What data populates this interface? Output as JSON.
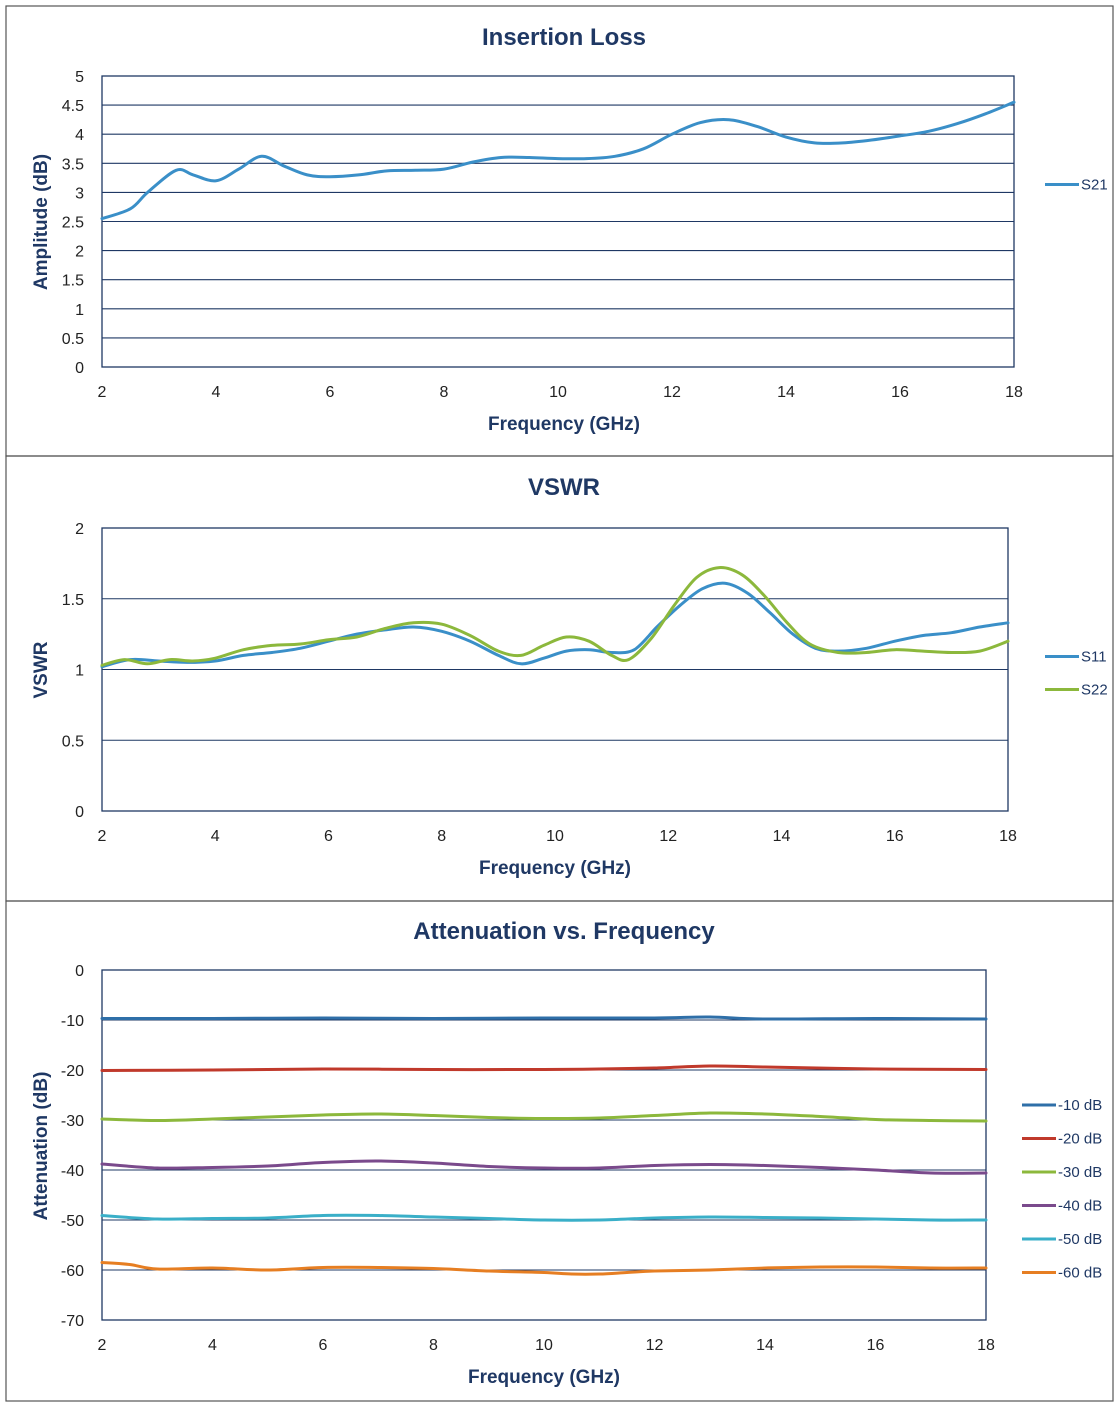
{
  "chart_data": [
    {
      "type": "line",
      "title": "Insertion Loss",
      "xlabel": "Frequency (GHz)",
      "ylabel": "Amplitude (dB)",
      "xlim": [
        2,
        18
      ],
      "ylim": [
        0,
        5
      ],
      "xticks": [
        2,
        4,
        6,
        8,
        10,
        12,
        14,
        16,
        18
      ],
      "yticks": [
        0,
        0.5,
        1,
        1.5,
        2,
        2.5,
        3,
        3.5,
        4,
        4.5,
        5
      ],
      "ytick_labels": [
        "0",
        "0.5",
        "1",
        "1.5",
        "2",
        "2.5",
        "3",
        "3.5",
        "4",
        "4.5",
        "5"
      ],
      "grid": "horizontal",
      "legend": "right",
      "series": [
        {
          "name": "S21",
          "color": "#3a8fc8",
          "x": [
            2,
            2.5,
            2.8,
            3.3,
            3.6,
            4.0,
            4.4,
            4.8,
            5.2,
            5.6,
            6.0,
            6.5,
            7.0,
            7.5,
            8.0,
            8.5,
            9.0,
            9.5,
            10.0,
            10.5,
            11.0,
            11.5,
            12.0,
            12.5,
            13.0,
            13.5,
            14.0,
            14.5,
            15.0,
            15.5,
            16.0,
            16.5,
            17.0,
            17.5,
            18.0
          ],
          "y": [
            2.55,
            2.72,
            3.0,
            3.38,
            3.3,
            3.2,
            3.4,
            3.62,
            3.45,
            3.3,
            3.27,
            3.3,
            3.37,
            3.38,
            3.4,
            3.52,
            3.6,
            3.6,
            3.58,
            3.58,
            3.62,
            3.75,
            4.0,
            4.2,
            4.25,
            4.13,
            3.95,
            3.85,
            3.85,
            3.9,
            3.97,
            4.05,
            4.18,
            4.35,
            4.55
          ]
        }
      ]
    },
    {
      "type": "line",
      "title": "VSWR",
      "xlabel": "Frequency (GHz)",
      "ylabel": "VSWR",
      "xlim": [
        2,
        18
      ],
      "ylim": [
        0,
        2
      ],
      "xticks": [
        2,
        4,
        6,
        8,
        10,
        12,
        14,
        16,
        18
      ],
      "yticks": [
        0,
        0.5,
        1,
        1.5,
        2
      ],
      "ytick_labels": [
        "0",
        "0.5",
        "1",
        "1.5",
        "2"
      ],
      "grid": "horizontal",
      "legend": "right",
      "series": [
        {
          "name": "S11",
          "color": "#3a8fc8",
          "x": [
            2,
            2.5,
            3.0,
            3.5,
            4.0,
            4.5,
            5.0,
            5.5,
            6.0,
            6.5,
            7.0,
            7.5,
            8.0,
            8.5,
            9.0,
            9.4,
            9.8,
            10.2,
            10.6,
            11.0,
            11.4,
            11.8,
            12.2,
            12.6,
            13.0,
            13.4,
            13.8,
            14.2,
            14.6,
            15.0,
            15.5,
            16.0,
            16.5,
            17.0,
            17.5,
            18.0
          ],
          "y": [
            1.02,
            1.07,
            1.06,
            1.05,
            1.06,
            1.1,
            1.12,
            1.15,
            1.2,
            1.25,
            1.28,
            1.3,
            1.27,
            1.2,
            1.1,
            1.04,
            1.08,
            1.13,
            1.14,
            1.12,
            1.14,
            1.3,
            1.45,
            1.57,
            1.61,
            1.54,
            1.4,
            1.25,
            1.15,
            1.13,
            1.15,
            1.2,
            1.24,
            1.26,
            1.3,
            1.33
          ]
        },
        {
          "name": "S22",
          "color": "#8cb83c",
          "x": [
            2,
            2.4,
            2.8,
            3.2,
            3.6,
            4.0,
            4.5,
            5.0,
            5.5,
            6.0,
            6.5,
            7.0,
            7.5,
            8.0,
            8.5,
            9.0,
            9.4,
            9.8,
            10.2,
            10.6,
            11.0,
            11.3,
            11.7,
            12.1,
            12.5,
            12.9,
            13.3,
            13.7,
            14.1,
            14.5,
            15.0,
            15.5,
            16.0,
            16.5,
            17.0,
            17.5,
            18.0
          ],
          "y": [
            1.03,
            1.07,
            1.04,
            1.07,
            1.06,
            1.08,
            1.14,
            1.17,
            1.18,
            1.21,
            1.23,
            1.29,
            1.33,
            1.32,
            1.24,
            1.13,
            1.1,
            1.17,
            1.23,
            1.2,
            1.1,
            1.07,
            1.22,
            1.45,
            1.65,
            1.72,
            1.67,
            1.52,
            1.33,
            1.18,
            1.12,
            1.12,
            1.14,
            1.13,
            1.12,
            1.13,
            1.2
          ]
        }
      ]
    },
    {
      "type": "line",
      "title": "Attenuation vs. Frequency",
      "xlabel": "Frequency (GHz)",
      "ylabel": "Attenuation (dB)",
      "xlim": [
        2,
        18
      ],
      "ylim": [
        -70,
        0
      ],
      "xticks": [
        2,
        4,
        6,
        8,
        10,
        12,
        14,
        16,
        18
      ],
      "yticks": [
        -70,
        -60,
        -50,
        -40,
        -30,
        -20,
        -10,
        0
      ],
      "ytick_labels": [
        "-70",
        "-60",
        "-50",
        "-40",
        "-30",
        "-20",
        "-10",
        "0"
      ],
      "grid": "horizontal",
      "legend": "right",
      "series": [
        {
          "name": "-10 dB",
          "color": "#2f6fa8",
          "x": [
            2,
            4,
            6,
            8,
            10,
            12,
            13,
            14,
            16,
            18
          ],
          "y": [
            -9.7,
            -9.7,
            -9.6,
            -9.7,
            -9.6,
            -9.6,
            -9.4,
            -9.8,
            -9.7,
            -9.8
          ]
        },
        {
          "name": "-20 dB",
          "color": "#c0392b",
          "x": [
            2,
            4,
            6,
            8,
            10,
            11,
            12,
            13,
            14,
            16,
            18
          ],
          "y": [
            -20.1,
            -20.0,
            -19.8,
            -19.9,
            -19.9,
            -19.8,
            -19.6,
            -19.2,
            -19.4,
            -19.8,
            -19.9
          ]
        },
        {
          "name": "-30 dB",
          "color": "#8cb83c",
          "x": [
            2,
            3,
            4,
            5,
            6,
            7,
            8,
            9,
            10,
            11,
            12,
            13,
            14,
            15,
            16,
            17,
            18
          ],
          "y": [
            -29.8,
            -30.1,
            -29.8,
            -29.4,
            -29.0,
            -28.8,
            -29.1,
            -29.5,
            -29.7,
            -29.6,
            -29.1,
            -28.6,
            -28.8,
            -29.3,
            -29.9,
            -30.1,
            -30.2
          ]
        },
        {
          "name": "-40 dB",
          "color": "#7a4a8c",
          "x": [
            2,
            3,
            4,
            5,
            6,
            7,
            8,
            9,
            10,
            11,
            12,
            13,
            14,
            15,
            16,
            17,
            18
          ],
          "y": [
            -38.8,
            -39.6,
            -39.5,
            -39.2,
            -38.5,
            -38.2,
            -38.6,
            -39.3,
            -39.6,
            -39.6,
            -39.1,
            -38.9,
            -39.1,
            -39.5,
            -40.0,
            -40.6,
            -40.6
          ]
        },
        {
          "name": "-50 dB",
          "color": "#3aafc8",
          "x": [
            2,
            3,
            4,
            5,
            6,
            7,
            8,
            9,
            10,
            11,
            12,
            13,
            14,
            15,
            16,
            17,
            18
          ],
          "y": [
            -49.1,
            -49.8,
            -49.7,
            -49.6,
            -49.1,
            -49.1,
            -49.4,
            -49.7,
            -50.0,
            -50.0,
            -49.6,
            -49.4,
            -49.5,
            -49.6,
            -49.8,
            -50.0,
            -50.0
          ]
        },
        {
          "name": "-60 dB",
          "color": "#e67e22",
          "x": [
            2,
            2.5,
            3,
            4,
            5,
            6,
            7,
            8,
            9,
            10,
            10.5,
            11,
            11.5,
            12,
            13,
            14,
            15,
            16,
            17,
            18
          ],
          "y": [
            -58.5,
            -58.9,
            -59.8,
            -59.6,
            -60.0,
            -59.5,
            -59.5,
            -59.7,
            -60.2,
            -60.5,
            -60.8,
            -60.8,
            -60.5,
            -60.2,
            -60.0,
            -59.6,
            -59.4,
            -59.4,
            -59.6,
            -59.6
          ]
        }
      ]
    }
  ]
}
